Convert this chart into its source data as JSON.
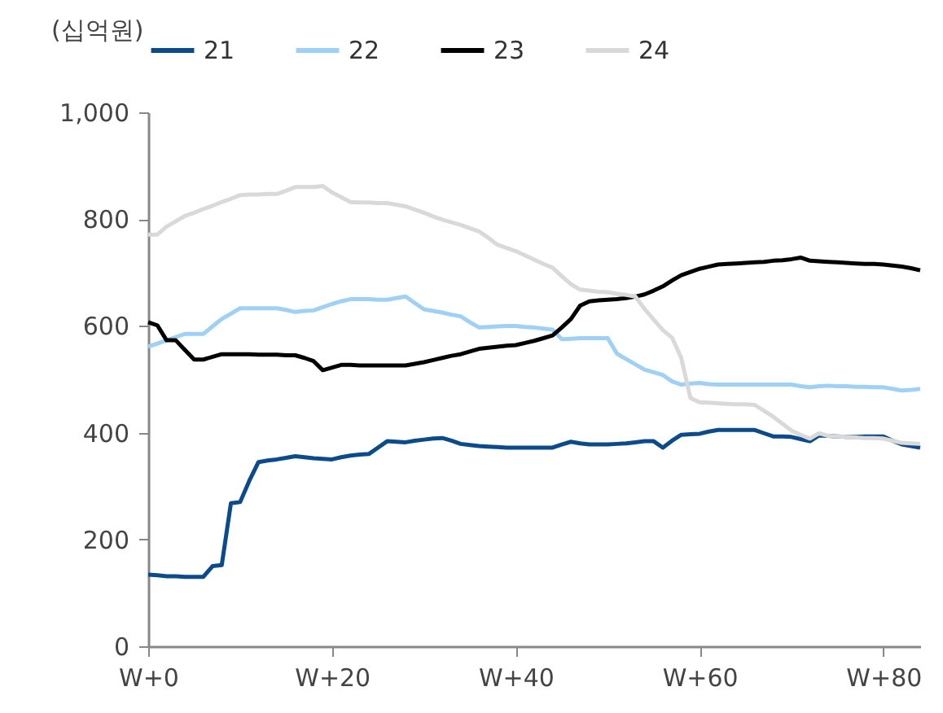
{
  "chart_data": {
    "type": "line",
    "ylabel": "(십억원)",
    "legend": "top",
    "grid": false,
    "marker": "none",
    "line_style": "solid",
    "categories": [
      "W+0",
      null,
      null,
      null,
      null,
      null,
      null,
      null,
      null,
      null,
      null,
      null,
      null,
      null,
      null,
      null,
      null,
      null,
      null,
      null,
      "W+20",
      null,
      null,
      null,
      null,
      null,
      null,
      null,
      null,
      null,
      null,
      null,
      null,
      null,
      null,
      null,
      null,
      null,
      null,
      null,
      "W+40",
      null,
      null,
      null,
      null,
      null,
      null,
      null,
      null,
      null,
      null,
      null,
      null,
      null,
      null,
      null,
      null,
      null,
      null,
      null,
      "W+60",
      null,
      null,
      null,
      null,
      null,
      null,
      null,
      null,
      null,
      null,
      null,
      null,
      null,
      null,
      null,
      null,
      null,
      null,
      null,
      "W+80",
      null,
      null,
      null,
      null
    ],
    "ylim": [
      0,
      1000
    ],
    "yticks": [
      0,
      200,
      400,
      600,
      800,
      {
        "value": 1000,
        "label": "1,000"
      }
    ],
    "series": [
      {
        "name": "21",
        "color": "#0b4a8b",
        "values": [
          134,
          133,
          131,
          131,
          130,
          130,
          130,
          150,
          152,
          268,
          270,
          310,
          345,
          348,
          350,
          353,
          356,
          354,
          352,
          351,
          350,
          354,
          357,
          359,
          360,
          372,
          384,
          383,
          382,
          385,
          387,
          389,
          390,
          385,
          379,
          377,
          375,
          374,
          373,
          372,
          372,
          372,
          372,
          372,
          372,
          378,
          383,
          380,
          378,
          378,
          378,
          379,
          380,
          382,
          384,
          384,
          372,
          385,
          396,
          397,
          398,
          402,
          405,
          405,
          405,
          405,
          405,
          399,
          393,
          393,
          392,
          388,
          384,
          395,
          394,
          393,
          392,
          392,
          393,
          393,
          393,
          385,
          378,
          375,
          372
        ]
      },
      {
        "name": "22",
        "color": "#9fd0f5",
        "values": [
          561,
          567,
          573,
          579,
          585,
          585,
          585,
          599,
          613,
          623,
          633,
          633,
          633,
          633,
          633,
          630,
          626,
          628,
          629,
          635,
          641,
          646,
          650,
          650,
          650,
          649,
          649,
          652,
          655,
          643,
          631,
          628,
          625,
          621,
          618,
          607,
          597,
          598,
          599,
          600,
          600,
          598,
          597,
          595,
          593,
          575,
          576,
          577,
          577,
          577,
          577,
          548,
          538,
          528,
          518,
          513,
          508,
          496,
          490,
          492,
          493,
          491,
          490,
          490,
          490,
          490,
          490,
          490,
          490,
          490,
          490,
          487,
          485,
          487,
          488,
          487,
          487,
          486,
          486,
          485,
          485,
          482,
          479,
          480,
          482
        ]
      },
      {
        "name": "23",
        "color": "#000000",
        "values": [
          607,
          601,
          573,
          573,
          555,
          537,
          537,
          542,
          547,
          547,
          547,
          547,
          546,
          546,
          546,
          545,
          545,
          540,
          534,
          517,
          522,
          527,
          527,
          526,
          526,
          526,
          526,
          526,
          526,
          529,
          532,
          536,
          540,
          544,
          547,
          552,
          557,
          559,
          561,
          563,
          564,
          568,
          572,
          577,
          582,
          597,
          613,
          638,
          646,
          648,
          649,
          650,
          652,
          655,
          659,
          666,
          674,
          685,
          695,
          701,
          707,
          711,
          715,
          716,
          717,
          718,
          719,
          720,
          722,
          723,
          725,
          728,
          722,
          721,
          720,
          719,
          718,
          717,
          716,
          716,
          715,
          713,
          711,
          708,
          704
        ]
      },
      {
        "name": "24",
        "color": "#d9d9d9",
        "values": [
          771,
          771,
          786,
          796,
          806,
          812,
          819,
          825,
          832,
          838,
          845,
          846,
          846,
          847,
          847,
          853,
          860,
          860,
          860,
          862,
          850,
          841,
          832,
          831,
          831,
          830,
          830,
          827,
          824,
          818,
          812,
          805,
          799,
          794,
          789,
          783,
          777,
          765,
          752,
          746,
          740,
          732,
          724,
          716,
          709,
          693,
          678,
          668,
          666,
          664,
          663,
          660,
          658,
          655,
          632,
          612,
          592,
          578,
          540,
          465,
          457,
          456,
          455,
          454,
          453,
          453,
          452,
          441,
          430,
          417,
          404,
          396,
          389,
          399,
          394,
          393,
          392,
          391,
          390,
          390,
          389,
          385,
          381,
          380,
          379
        ]
      }
    ]
  }
}
